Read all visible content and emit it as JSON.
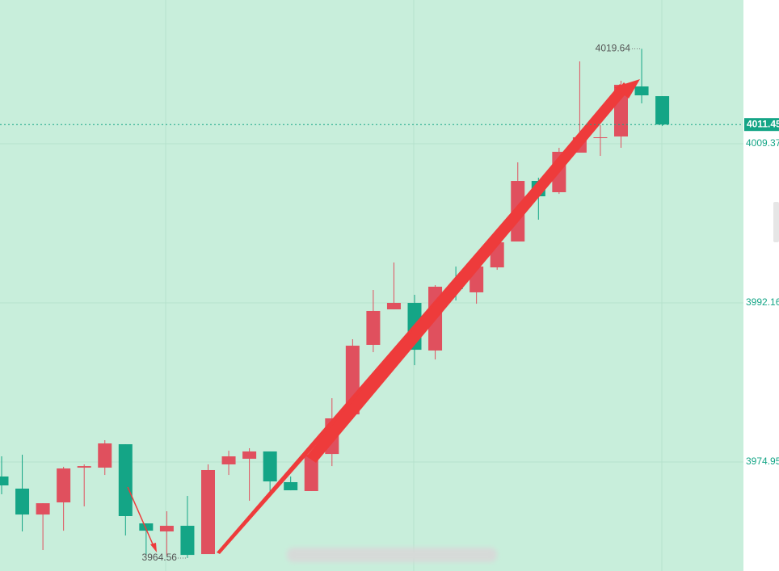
{
  "chart_data": {
    "type": "candlestick",
    "open": [
      3973.38,
      3972.07,
      3969.27,
      3970.58,
      3974.34,
      3974.34,
      3976.87,
      3968.31,
      3967.44,
      3968.05,
      3964.99,
      3974.69,
      3975.3,
      3976.09,
      3972.77,
      3971.81,
      3975.82,
      3980.1,
      3987.62,
      3991.46,
      3992.16,
      3987.01,
      3993.82,
      3993.3,
      3996.0,
      3998.8,
      4005.35,
      4004.13,
      4008.41,
      4009.98,
      4010.16,
      4015.57,
      4014.52
    ],
    "high": [
      3975.56,
      3975.74,
      3970.49,
      3974.43,
      3974.69,
      3977.31,
      3976.87,
      3968.31,
      3969.62,
      3971.28,
      3974.69,
      3976.17,
      3976.44,
      3976.09,
      3973.38,
      3976.17,
      3981.85,
      3988.23,
      3993.56,
      3996.53,
      3993.03,
      3994.08,
      3996.09,
      3996.27,
      3998.71,
      4007.36,
      4005.7,
      4008.93,
      4018.28,
      4011.38,
      4016.18,
      4019.64,
      4014.52
    ],
    "low": [
      3971.46,
      3967.44,
      3965.43,
      3967.52,
      3970.15,
      3973.55,
      3967.0,
      3964.9,
      3964.81,
      3964.56,
      3964.99,
      3973.55,
      3970.76,
      3971.81,
      3971.89,
      3971.81,
      3974.51,
      3979.58,
      3986.83,
      3991.46,
      3985.43,
      3986.04,
      3992.42,
      3992.07,
      3995.74,
      3998.8,
      4001.16,
      4003.95,
      4008.41,
      4008.06,
      4008.93,
      4013.74,
      4011.29
    ],
    "close": [
      3972.42,
      3969.27,
      3970.49,
      3974.25,
      3974.51,
      3976.96,
      3969.1,
      3967.52,
      3968.05,
      3964.9,
      3974.08,
      3975.56,
      3976.09,
      3972.85,
      3971.89,
      3975.74,
      3979.67,
      3987.53,
      3991.29,
      3992.16,
      3987.09,
      3993.91,
      3993.65,
      3996.09,
      3998.71,
      4005.35,
      4003.69,
      4008.5,
      4010.07,
      4010.07,
      4015.75,
      4014.61,
      4011.45
    ],
    "up_color": "#e0505e",
    "down_color": "#14a586",
    "ylim": [
      3963.16,
      4024.92
    ],
    "yticks": [
      4009.37,
      3992.16,
      3974.95
    ],
    "grid": true
  }
}
